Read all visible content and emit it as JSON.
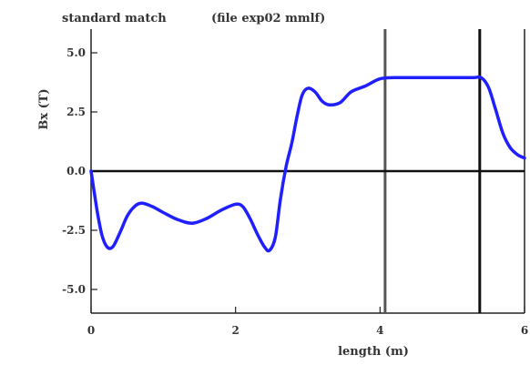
{
  "chart_data": {
    "type": "line",
    "title": "standard match",
    "subtitle": "(file exp02 mmlf)",
    "xlabel": "length (m)",
    "ylabel": "Bx (T)",
    "xlim": [
      0,
      6
    ],
    "ylim": [
      -6,
      6
    ],
    "x_ticks": [
      0,
      2,
      4,
      6
    ],
    "x_tick_labels": [
      "0",
      "2",
      "4",
      "6"
    ],
    "y_ticks": [
      5,
      2.5,
      0,
      -2.5,
      -5
    ],
    "y_tick_labels": [
      "5.0",
      "2.5",
      "0.0",
      "-2.5",
      "-5.0"
    ],
    "grid": false,
    "legend": "none",
    "zero_line": true,
    "vertical_markers": [
      {
        "x": 4.07,
        "color": "#555555"
      },
      {
        "x": 5.38,
        "color": "#111111"
      }
    ],
    "series": [
      {
        "color": "#1f1fff",
        "x": [
          0.0,
          0.08,
          0.15,
          0.22,
          0.3,
          0.4,
          0.5,
          0.6,
          0.7,
          0.85,
          1.0,
          1.2,
          1.4,
          1.6,
          1.8,
          2.0,
          2.1,
          2.2,
          2.3,
          2.4,
          2.47,
          2.55,
          2.62,
          2.7,
          2.78,
          2.85,
          2.92,
          3.0,
          3.1,
          3.2,
          3.3,
          3.45,
          3.6,
          3.8,
          4.0,
          4.2,
          4.5,
          4.8,
          5.1,
          5.3,
          5.4,
          5.5,
          5.6,
          5.7,
          5.8,
          5.9,
          6.0
        ],
        "y": [
          0.0,
          -1.6,
          -2.7,
          -3.2,
          -3.2,
          -2.6,
          -1.9,
          -1.5,
          -1.35,
          -1.5,
          -1.75,
          -2.05,
          -2.2,
          -2.0,
          -1.65,
          -1.4,
          -1.5,
          -2.0,
          -2.65,
          -3.2,
          -3.35,
          -2.8,
          -1.2,
          0.2,
          1.2,
          2.3,
          3.2,
          3.5,
          3.35,
          2.95,
          2.8,
          2.9,
          3.35,
          3.6,
          3.9,
          3.95,
          3.95,
          3.95,
          3.95,
          3.95,
          3.95,
          3.55,
          2.6,
          1.6,
          1.0,
          0.7,
          0.55
        ]
      }
    ]
  }
}
